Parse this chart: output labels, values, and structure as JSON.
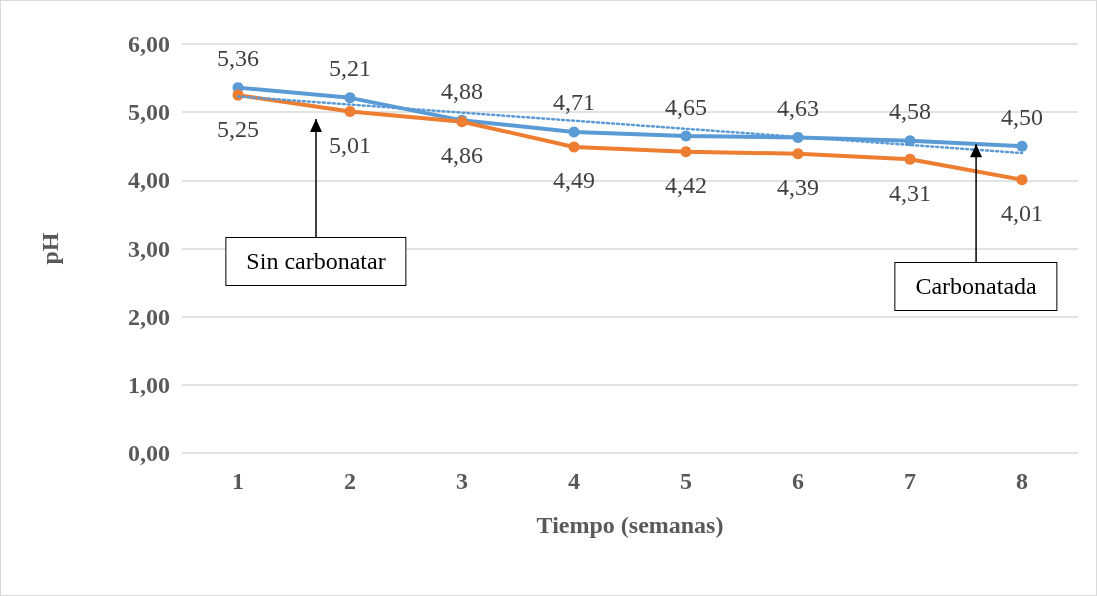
{
  "chart_data": {
    "type": "line",
    "xlabel": "Tiempo (semanas)",
    "ylabel": "pH",
    "x": [
      1,
      2,
      3,
      4,
      5,
      6,
      7,
      8
    ],
    "xlim": [
      0.5,
      8.5
    ],
    "xticks": [
      1,
      2,
      3,
      4,
      5,
      6,
      7,
      8
    ],
    "ylim": [
      0,
      6
    ],
    "yticks": [
      {
        "value": 0,
        "label": "0,00"
      },
      {
        "value": 1,
        "label": "1,00"
      },
      {
        "value": 2,
        "label": "2,00"
      },
      {
        "value": 3,
        "label": "3,00"
      },
      {
        "value": 4,
        "label": "4,00"
      },
      {
        "value": 5,
        "label": "5,00"
      },
      {
        "value": 6,
        "label": "6,00"
      }
    ],
    "grid": "y",
    "marker": "circle",
    "series": [
      {
        "color": "#5b9bd5",
        "values": [
          5.36,
          5.21,
          4.88,
          4.71,
          4.65,
          4.63,
          4.58,
          4.5
        ],
        "value_labels": [
          "5,36",
          "5,21",
          "4,88",
          "4,71",
          "4,65",
          "4,63",
          "4,58",
          "4,50"
        ]
      },
      {
        "color": "#ed7d31",
        "values": [
          5.25,
          5.01,
          4.86,
          4.49,
          4.42,
          4.39,
          4.31,
          4.01
        ],
        "value_labels": [
          "5,25",
          "5,01",
          "4,86",
          "4,49",
          "4,42",
          "4,39",
          "4,31",
          "4,01"
        ]
      },
      {
        "type": "line",
        "color": "#5b9bd5",
        "x": [
          1,
          8
        ],
        "values": [
          5.23,
          4.4
        ],
        "line_style": "dotted",
        "marker": "none"
      }
    ],
    "annotations": [
      "Sin carbonatar",
      {
        "text": "Carbonatada",
        "x": 7.59,
        "y": 4.53
      }
    ]
  }
}
